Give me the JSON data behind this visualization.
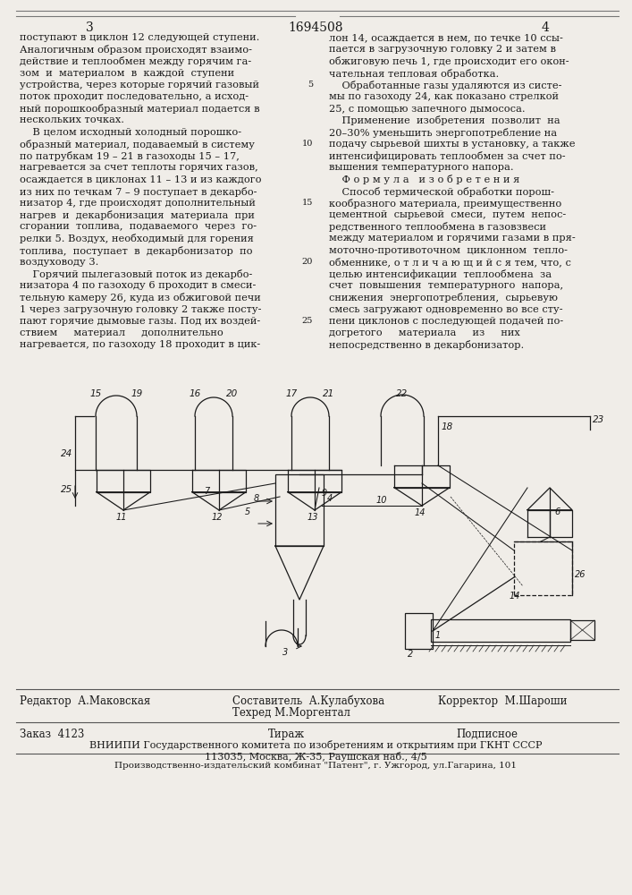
{
  "page_number_left": "3",
  "patent_number": "1694508",
  "page_number_right": "4",
  "background_color": "#f0ede8",
  "text_color": "#1a1a1a",
  "left_column_text": [
    "поступают в циклон 12 следующей ступени.",
    "Аналогичным образом происходят взаимо-",
    "действие и теплообмен между горячим га-",
    "зом  и  материалом  в  каждой  ступени",
    "устройства, через которые горячий газовый",
    "поток проходит последовательно, а исход-",
    "ный порошкообразный материал подается в",
    "нескольких точках.",
    "    В целом исходный холодный порошко-",
    "образный материал, подаваемый в систему",
    "по патрубкам 19 – 21 в газоходы 15 – 17,",
    "нагревается за счет теплоты горячих газов,",
    "осаждается в циклонах 11 – 13 и из каждого",
    "из них по течкам 7 – 9 поступает в декарбо-",
    "низатор 4, где происходят дополнительный",
    "нагрев  и  декарбонизация  материала  при",
    "сгорании  топлива,  подаваемого  через  го-",
    "релки 5. Воздух, необходимый для горения",
    "топлива,  поступает  в  декарбонизатор  по",
    "воздуховоду 3.",
    "    Горячий пылегазовый поток из декарбо-",
    "низатора 4 по газоходу 6 проходит в смеси-",
    "тельную камеру 26, куда из обжиговой печи",
    "1 через загрузочную головку 2 также посту-",
    "пают горячие дымовые газы. Под их воздей-",
    "ствием     материал     дополнительно",
    "нагревается, по газоходу 18 проходит в цик-"
  ],
  "right_column_text": [
    "лон 14, осаждается в нем, по течке 10 ссы-",
    "пается в загрузочную головку 2 и затем в",
    "обжиговую печь 1, где происходит его окон-",
    "чательная тепловая обработка.",
    "    Обработанные газы удаляются из систе-",
    "мы по газоходу 24, как показано стрелкой",
    "25, с помощью запечного дымососа.   ",
    "    Применение  изобретения  позволит  на",
    "20–30% уменьшить энергопотребление на",
    "подачу сырьевой шихты в установку, а также",
    "интенсифицировать теплообмен за счет по-",
    "вышения температурного напора.",
    "    Ф о р м у л а   и з о б р е т е н и я",
    "    Способ термической обработки порош-",
    "кообразного материала, преимущественно",
    "цементной  сырьевой  смеси,  путем  непос-",
    "редственного теплообмена в газовзвеси",
    "между материалом и горячими газами в пря-",
    "моточно-противоточном  циклонном  тепло-",
    "обменнике, о т л и ч а ю щ и й с я тем, что, с",
    "целью интенсификации  теплообмена  за",
    "счет  повышения  температурного  напора,",
    "снижения  энергопотребления,  сырьевую",
    "смесь загружают одновременно во все сту-",
    "пени циклонов с последующей подачей по-",
    "догретого     материала     из     них",
    "непосредственно в декарбонизатор."
  ],
  "footer_editor_label": "Редактор  А.Маковская",
  "footer_composer_label": "Составитель  А.Кулабухова",
  "footer_techred_label": "Техред М.Моргентал",
  "footer_corrector_label": "Корректор  М.Шароши",
  "footer_order": "Заказ  4123",
  "footer_circulation": "Тираж",
  "footer_subscription": "Подписное",
  "footer_vniipii": "ВНИИПИ Государственного комитета по изобретениям и открытиям при ГКНТ СССР",
  "footer_address": "113035, Москва, Ж-35, Раушская наб., 4/5",
  "footer_publisher": "Производственно-издательский комбинат \"Патент\", г. Ужгород, ул.Гагарина, 101"
}
